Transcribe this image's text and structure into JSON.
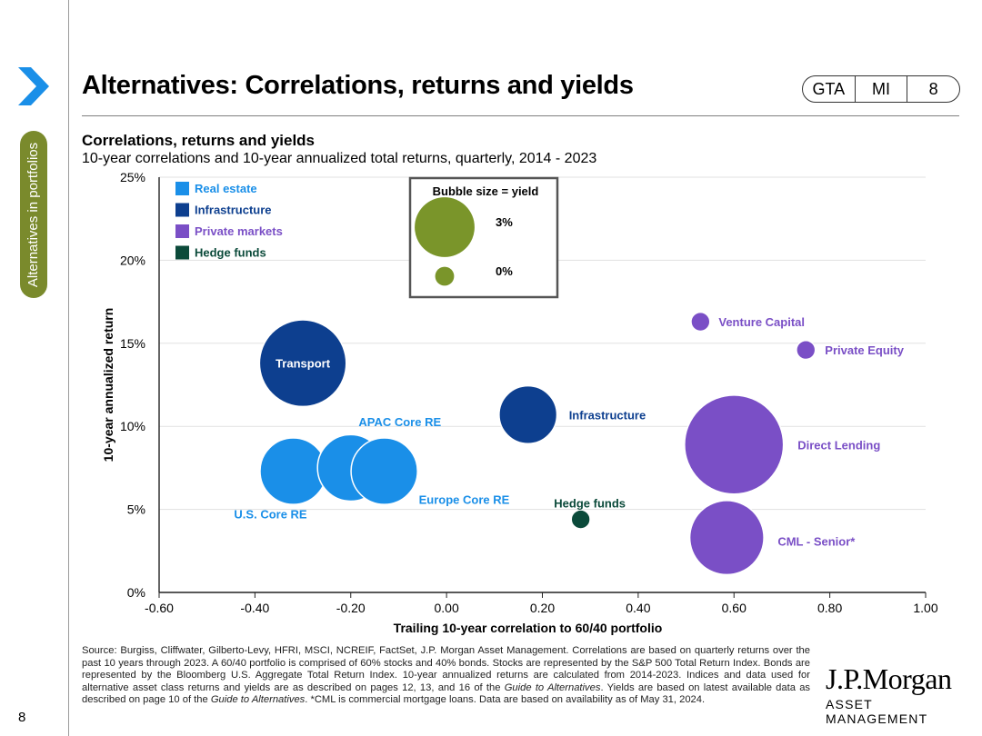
{
  "side_tab": "Alternatives in portfolios",
  "page_number": "8",
  "header": {
    "title": "Alternatives: Correlations, returns and yields",
    "tags": [
      "GTA",
      "MI",
      "8"
    ]
  },
  "chart_heading": {
    "title": "Correlations, returns and yields",
    "subtitle": "10-year correlations and 10-year annualized total returns, quarterly, 2014 - 2023"
  },
  "chart_data": {
    "type": "scatter",
    "title": "Correlations, returns and yields",
    "xlabel": "Trailing 10-year correlation to 60/40 portfolio",
    "ylabel": "10-year annualized return",
    "xlim": [
      -0.6,
      1.0
    ],
    "ylim": [
      0,
      25
    ],
    "x_ticks": [
      -0.6,
      -0.4,
      -0.2,
      0.0,
      0.2,
      0.4,
      0.6,
      0.8,
      1.0
    ],
    "x_tick_labels": [
      "-0.60",
      "-0.40",
      "-0.20",
      "0.00",
      "0.20",
      "0.40",
      "0.60",
      "0.80",
      "1.00"
    ],
    "y_ticks": [
      0,
      5,
      10,
      15,
      20,
      25
    ],
    "y_tick_labels": [
      "0%",
      "5%",
      "10%",
      "15%",
      "20%",
      "25%"
    ],
    "grid": "horizontal",
    "legend": [
      {
        "label": "Real estate",
        "color": "#1a8fe8"
      },
      {
        "label": "Infrastructure",
        "color": "#0d3f8f"
      },
      {
        "label": "Private markets",
        "color": "#7a4fc6"
      },
      {
        "label": "Hedge funds",
        "color": "#0b4a3a"
      }
    ],
    "size_legend": {
      "title": "Bubble size = yield",
      "color": "#7a952a",
      "entries": [
        {
          "label": "3%",
          "yield": 3.0
        },
        {
          "label": "0%",
          "yield": 0.3
        }
      ]
    },
    "series": [
      {
        "name": "Real estate",
        "color": "#1a8fe8",
        "points": [
          {
            "label": "U.S. Core RE",
            "x": -0.32,
            "y": 7.3,
            "yield": 3.7
          },
          {
            "label": "APAC Core RE",
            "x": -0.2,
            "y": 7.5,
            "yield": 3.7
          },
          {
            "label": "Europe Core RE",
            "x": -0.13,
            "y": 7.3,
            "yield": 3.7
          }
        ]
      },
      {
        "name": "Infrastructure",
        "color": "#0d3f8f",
        "points": [
          {
            "label": "Transport",
            "x": -0.3,
            "y": 13.8,
            "yield": 6.3
          },
          {
            "label": "Infrastructure",
            "x": 0.17,
            "y": 10.7,
            "yield": 2.8
          }
        ]
      },
      {
        "name": "Private markets",
        "color": "#7a4fc6",
        "points": [
          {
            "label": "Venture Capital",
            "x": 0.53,
            "y": 16.3,
            "yield": 0.3
          },
          {
            "label": "Private Equity",
            "x": 0.75,
            "y": 14.6,
            "yield": 0.3
          },
          {
            "label": "Direct Lending",
            "x": 0.6,
            "y": 8.9,
            "yield": 8.2
          },
          {
            "label": "CML - Senior*",
            "x": 0.585,
            "y": 3.3,
            "yield": 4.6
          }
        ]
      },
      {
        "name": "Hedge funds",
        "color": "#0b4a3a",
        "points": [
          {
            "label": "Hedge funds",
            "x": 0.28,
            "y": 4.4,
            "yield": 0.3
          }
        ]
      }
    ]
  },
  "footnote": "Source: Burgiss, Cliffwater, Gilberto-Levy, HFRI, MSCI, NCREIF, FactSet, J.P. Morgan Asset Management. Correlations are based on quarterly returns over the past 10 years through 2023. A 60/40 portfolio is comprised of 60% stocks and 40% bonds. Stocks are represented by the S&P 500 Total Return Index. Bonds are represented by the Bloomberg U.S. Aggregate Total Return Index. 10-year annualized returns are calculated from 2014-2023. Indices and data used for alternative asset class returns and yields are as described on pages 12, 13, and 16 of the Guide to Alternatives. Yields are based on latest available data as described on page 10 of the Guide to Alternatives. *CML is commercial mortgage loans. Data are based on availability as of May 31, 2024.",
  "logo": {
    "name": "J.P.Morgan",
    "sub": "ASSET MANAGEMENT"
  }
}
